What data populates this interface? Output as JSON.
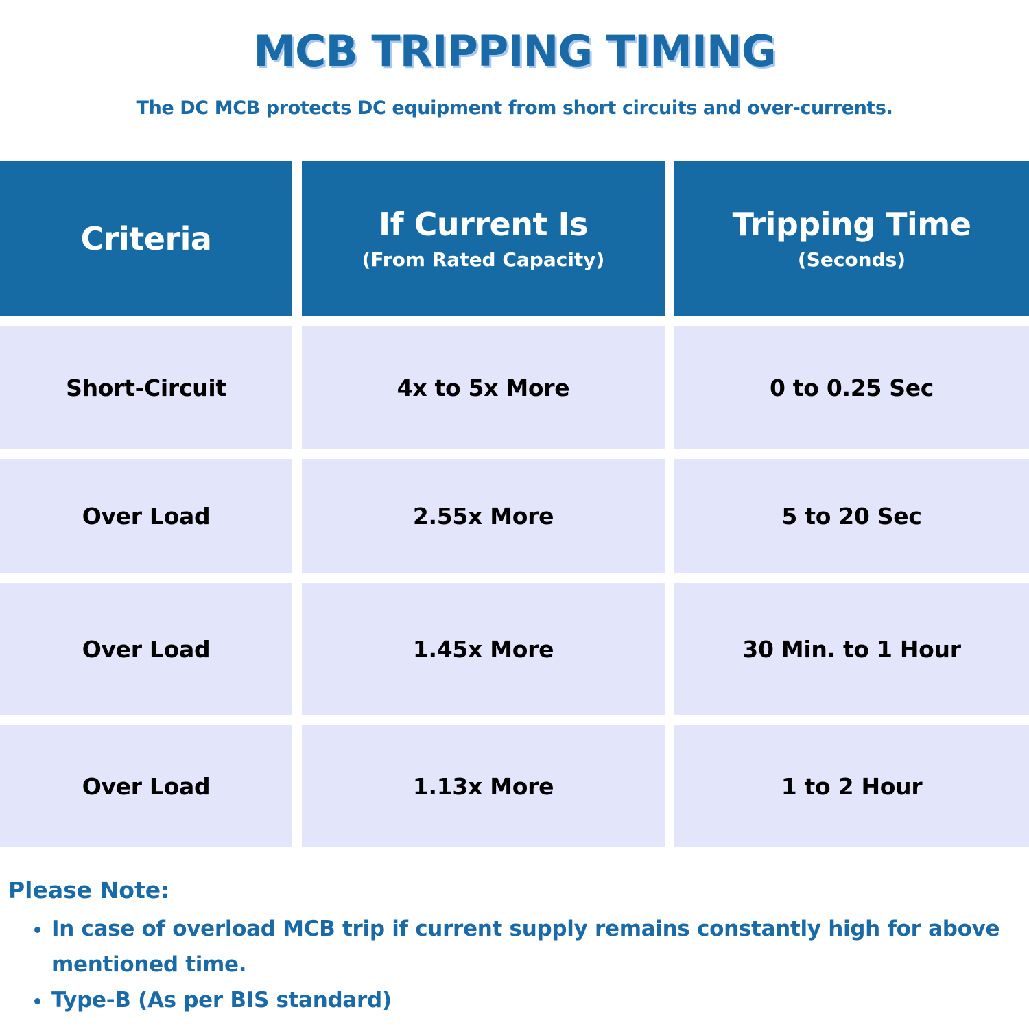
{
  "header": {
    "title": "MCB TRIPPING TIMING",
    "subtitle": "The DC MCB protects DC equipment from short circuits and over-currents."
  },
  "table": {
    "columns": [
      {
        "title": "Criteria"
      },
      {
        "title": "If Current Is",
        "subtitle": "(From Rated Capacity)"
      },
      {
        "title": "Tripping Time",
        "subtitle": "(Seconds)"
      }
    ],
    "rows": [
      [
        "Short-Circuit",
        "4x to 5x More",
        "0 to 0.25 Sec"
      ],
      [
        "Over Load",
        "2.55x More",
        "5 to 20 Sec"
      ],
      [
        "Over Load",
        "1.45x More",
        "30 Min. to 1 Hour"
      ],
      [
        "Over Load",
        "1.13x More",
        "1 to 2 Hour"
      ]
    ]
  },
  "note": {
    "title": "Please Note:",
    "items": [
      "In case of overload MCB trip if current supply remains constantly high for above mentioned time.",
      "Type-B (As per BIS standard)"
    ]
  }
}
